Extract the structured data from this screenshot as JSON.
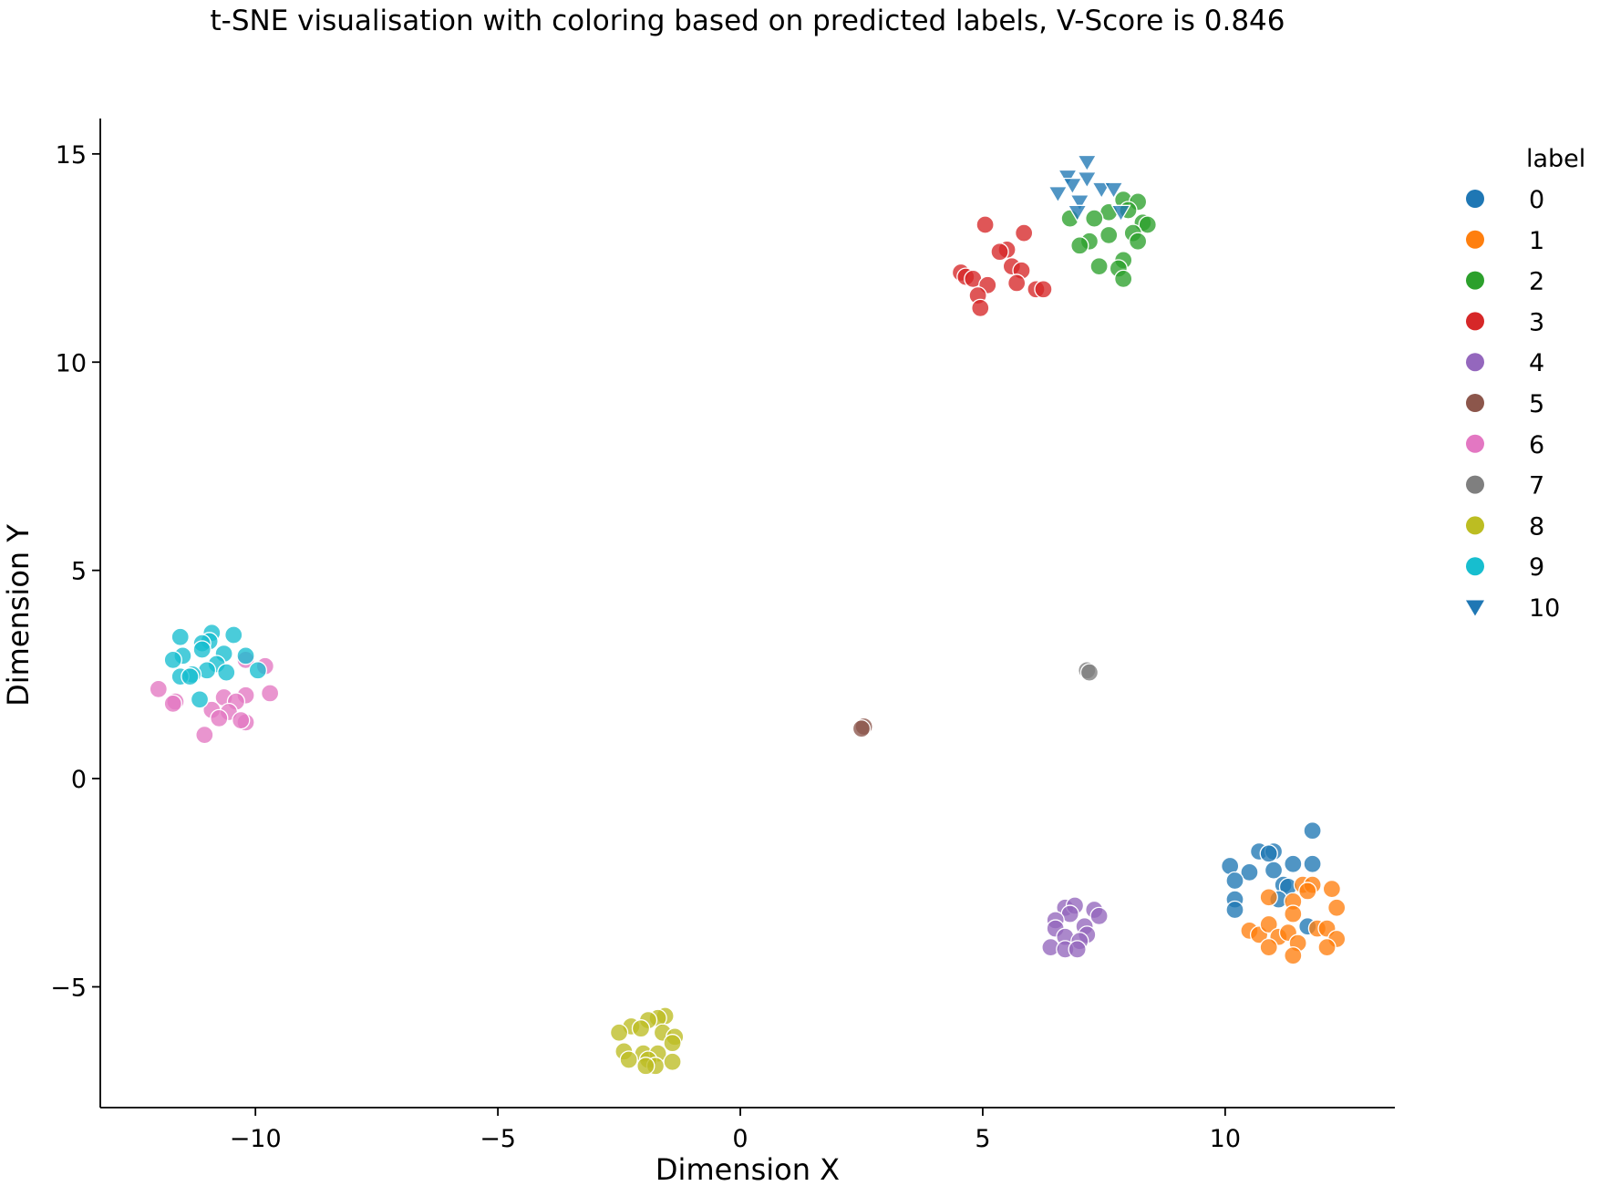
{
  "chart_data": {
    "type": "scatter",
    "title": "t-SNE visualisation with coloring based on predicted labels, V-Score is 0.846",
    "xlabel": "Dimension X",
    "ylabel": "Dimension Y",
    "xlim": [
      -13.2,
      13.5
    ],
    "ylim": [
      -7.9,
      15.85
    ],
    "xticks": [
      -10,
      -5,
      0,
      5,
      10
    ],
    "xtick_labels": [
      "−10",
      "−5",
      "0",
      "5",
      "10"
    ],
    "yticks": [
      -5,
      0,
      5,
      10,
      15
    ],
    "ytick_labels": [
      "−5",
      "0",
      "5",
      "10",
      "15"
    ],
    "grid": false,
    "legend": {
      "title": "label",
      "placement": "outside-right-top",
      "entries": [
        {
          "label": "0",
          "color": "#1f77b4",
          "marker": "circle"
        },
        {
          "label": "1",
          "color": "#ff7f0e",
          "marker": "circle"
        },
        {
          "label": "2",
          "color": "#2ca02c",
          "marker": "circle"
        },
        {
          "label": "3",
          "color": "#d62728",
          "marker": "circle"
        },
        {
          "label": "4",
          "color": "#9467bd",
          "marker": "circle"
        },
        {
          "label": "5",
          "color": "#8c564b",
          "marker": "circle"
        },
        {
          "label": "6",
          "color": "#e377c2",
          "marker": "circle"
        },
        {
          "label": "7",
          "color": "#7f7f7f",
          "marker": "circle"
        },
        {
          "label": "8",
          "color": "#bcbd22",
          "marker": "circle"
        },
        {
          "label": "9",
          "color": "#17becf",
          "marker": "circle"
        },
        {
          "label": "10",
          "color": "#1f77b4",
          "marker": "triangle-down"
        }
      ]
    },
    "series": [
      {
        "name": "0",
        "color": "#1f77b4",
        "marker": "circle",
        "points": [
          [
            11.8,
            -1.25
          ],
          [
            10.7,
            -1.75
          ],
          [
            11.0,
            -1.75
          ],
          [
            10.9,
            -1.8
          ],
          [
            10.1,
            -2.1
          ],
          [
            10.5,
            -2.25
          ],
          [
            11.4,
            -2.05
          ],
          [
            11.8,
            -2.05
          ],
          [
            10.2,
            -2.45
          ],
          [
            11.0,
            -2.2
          ],
          [
            11.2,
            -2.55
          ],
          [
            11.3,
            -2.6
          ],
          [
            10.2,
            -2.9
          ],
          [
            11.1,
            -2.9
          ],
          [
            10.2,
            -3.15
          ],
          [
            11.7,
            -3.55
          ]
        ]
      },
      {
        "name": "1",
        "color": "#ff7f0e",
        "marker": "circle",
        "points": [
          [
            11.6,
            -2.55
          ],
          [
            11.8,
            -2.55
          ],
          [
            12.2,
            -2.65
          ],
          [
            11.7,
            -2.7
          ],
          [
            10.9,
            -2.85
          ],
          [
            11.4,
            -2.95
          ],
          [
            12.3,
            -3.1
          ],
          [
            11.4,
            -3.25
          ],
          [
            10.5,
            -3.65
          ],
          [
            10.7,
            -3.75
          ],
          [
            10.9,
            -3.5
          ],
          [
            11.1,
            -3.8
          ],
          [
            11.3,
            -3.7
          ],
          [
            11.9,
            -3.6
          ],
          [
            12.1,
            -3.6
          ],
          [
            11.5,
            -3.95
          ],
          [
            12.3,
            -3.85
          ],
          [
            10.9,
            -4.05
          ],
          [
            12.1,
            -4.05
          ],
          [
            11.4,
            -4.25
          ]
        ]
      },
      {
        "name": "2",
        "color": "#2ca02c",
        "marker": "circle",
        "points": [
          [
            7.9,
            13.9
          ],
          [
            8.2,
            13.85
          ],
          [
            7.6,
            13.6
          ],
          [
            8.0,
            13.65
          ],
          [
            6.8,
            13.45
          ],
          [
            7.3,
            13.45
          ],
          [
            8.3,
            13.35
          ],
          [
            8.4,
            13.3
          ],
          [
            8.1,
            13.1
          ],
          [
            7.6,
            13.05
          ],
          [
            8.2,
            12.9
          ],
          [
            7.2,
            12.9
          ],
          [
            7.0,
            12.8
          ],
          [
            7.9,
            12.45
          ],
          [
            7.4,
            12.3
          ],
          [
            7.8,
            12.25
          ],
          [
            7.9,
            12.0
          ]
        ]
      },
      {
        "name": "3",
        "color": "#d62728",
        "marker": "circle",
        "points": [
          [
            5.05,
            13.3
          ],
          [
            5.85,
            13.1
          ],
          [
            5.5,
            12.7
          ],
          [
            5.35,
            12.65
          ],
          [
            5.6,
            12.3
          ],
          [
            5.8,
            12.2
          ],
          [
            4.55,
            12.15
          ],
          [
            4.65,
            12.05
          ],
          [
            4.8,
            12.0
          ],
          [
            5.1,
            11.85
          ],
          [
            5.7,
            11.9
          ],
          [
            6.1,
            11.75
          ],
          [
            6.25,
            11.75
          ],
          [
            4.9,
            11.6
          ],
          [
            4.95,
            11.3
          ]
        ]
      },
      {
        "name": "4",
        "color": "#9467bd",
        "marker": "circle",
        "points": [
          [
            6.7,
            -3.1
          ],
          [
            6.9,
            -3.05
          ],
          [
            7.3,
            -3.15
          ],
          [
            6.8,
            -3.25
          ],
          [
            7.4,
            -3.3
          ],
          [
            6.5,
            -3.4
          ],
          [
            7.1,
            -3.55
          ],
          [
            6.5,
            -3.6
          ],
          [
            7.15,
            -3.75
          ],
          [
            6.7,
            -3.8
          ],
          [
            7.0,
            -3.9
          ],
          [
            6.4,
            -4.05
          ],
          [
            6.7,
            -4.1
          ],
          [
            6.95,
            -4.1
          ]
        ]
      },
      {
        "name": "5",
        "color": "#8c564b",
        "marker": "circle",
        "points": [
          [
            2.55,
            1.25
          ],
          [
            2.5,
            1.2
          ]
        ]
      },
      {
        "name": "6",
        "color": "#e377c2",
        "marker": "circle",
        "points": [
          [
            -10.2,
            2.85
          ],
          [
            -9.8,
            2.7
          ],
          [
            -12.0,
            2.15
          ],
          [
            -9.7,
            2.05
          ],
          [
            -10.65,
            1.95
          ],
          [
            -10.2,
            2.0
          ],
          [
            -11.65,
            1.85
          ],
          [
            -11.7,
            1.8
          ],
          [
            -10.4,
            1.85
          ],
          [
            -10.9,
            1.65
          ],
          [
            -10.55,
            1.6
          ],
          [
            -10.75,
            1.45
          ],
          [
            -10.2,
            1.35
          ],
          [
            -10.3,
            1.4
          ],
          [
            -11.05,
            1.05
          ]
        ]
      },
      {
        "name": "7",
        "color": "#7f7f7f",
        "marker": "circle",
        "points": [
          [
            7.15,
            2.6
          ],
          [
            7.2,
            2.55
          ]
        ]
      },
      {
        "name": "8",
        "color": "#bcbd22",
        "marker": "circle",
        "points": [
          [
            -1.55,
            -5.7
          ],
          [
            -1.7,
            -5.75
          ],
          [
            -1.9,
            -5.8
          ],
          [
            -2.25,
            -5.95
          ],
          [
            -2.5,
            -6.1
          ],
          [
            -1.6,
            -6.1
          ],
          [
            -2.05,
            -6.0
          ],
          [
            -1.35,
            -6.2
          ],
          [
            -1.4,
            -6.35
          ],
          [
            -2.4,
            -6.55
          ],
          [
            -2.0,
            -6.6
          ],
          [
            -1.7,
            -6.6
          ],
          [
            -2.3,
            -6.75
          ],
          [
            -1.9,
            -6.75
          ],
          [
            -1.4,
            -6.8
          ],
          [
            -1.75,
            -6.9
          ],
          [
            -1.95,
            -6.9
          ]
        ]
      },
      {
        "name": "9",
        "color": "#17becf",
        "marker": "circle",
        "points": [
          [
            -10.9,
            3.5
          ],
          [
            -10.45,
            3.45
          ],
          [
            -11.55,
            3.4
          ],
          [
            -10.95,
            3.3
          ],
          [
            -11.1,
            3.25
          ],
          [
            -11.1,
            3.1
          ],
          [
            -11.5,
            2.95
          ],
          [
            -10.65,
            3.0
          ],
          [
            -10.2,
            2.95
          ],
          [
            -11.7,
            2.85
          ],
          [
            -10.8,
            2.75
          ],
          [
            -11.0,
            2.6
          ],
          [
            -9.95,
            2.6
          ],
          [
            -11.3,
            2.5
          ],
          [
            -11.55,
            2.45
          ],
          [
            -11.35,
            2.45
          ],
          [
            -10.6,
            2.55
          ],
          [
            -11.15,
            1.9
          ]
        ]
      },
      {
        "name": "10",
        "color": "#1f77b4",
        "marker": "triangle-down",
        "points": [
          [
            7.15,
            14.8
          ],
          [
            6.75,
            14.45
          ],
          [
            7.15,
            14.4
          ],
          [
            6.85,
            14.25
          ],
          [
            7.45,
            14.15
          ],
          [
            7.7,
            14.15
          ],
          [
            6.55,
            14.05
          ],
          [
            7.0,
            13.85
          ],
          [
            6.95,
            13.6
          ],
          [
            7.85,
            13.6
          ]
        ]
      }
    ]
  }
}
